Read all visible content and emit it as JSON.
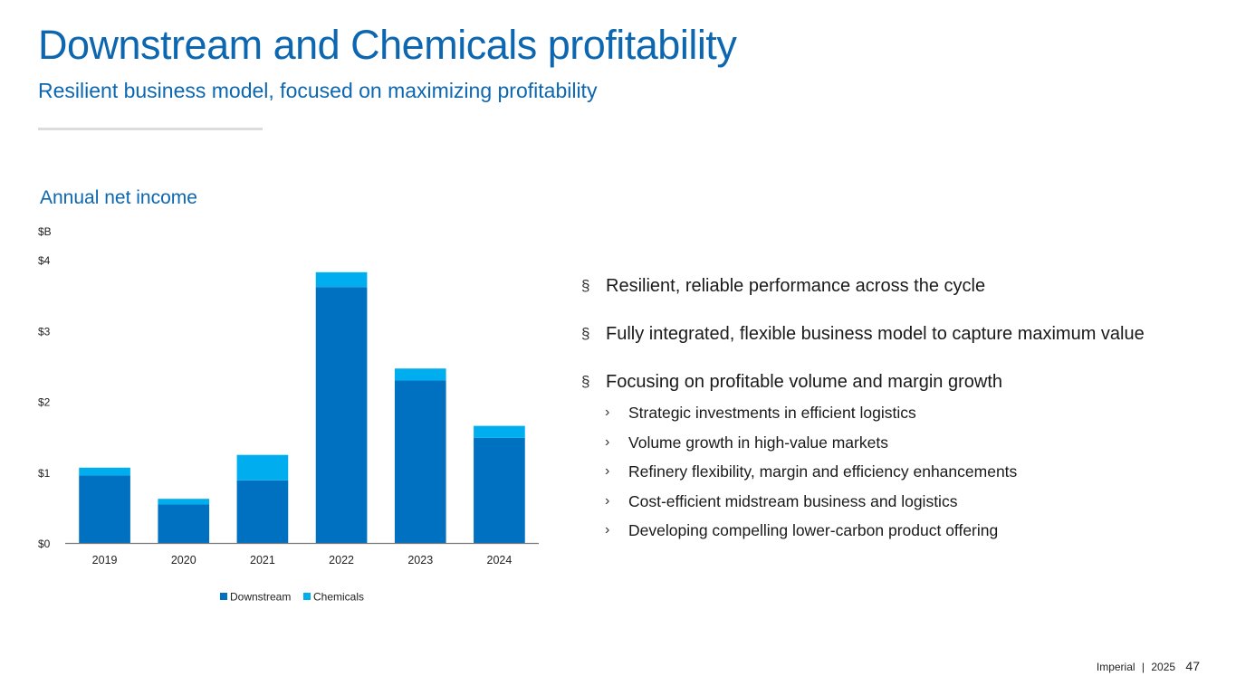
{
  "header": {
    "title": "Downstream and Chemicals profitability",
    "subtitle": "Resilient business model, focused on maximizing profitability"
  },
  "chart_title": "Annual net income",
  "chart_data": {
    "type": "bar",
    "stacked": true,
    "title": "Annual net income",
    "ylabel": "$B",
    "xlabel": "",
    "ylim": [
      0,
      4
    ],
    "yticks": [
      "$0",
      "$1",
      "$2",
      "$3",
      "$4"
    ],
    "categories": [
      "2019",
      "2020",
      "2021",
      "2022",
      "2023",
      "2024"
    ],
    "series": [
      {
        "name": "Downstream",
        "color": "#0070c0",
        "values": [
          0.96,
          0.55,
          0.89,
          3.62,
          2.3,
          1.49
        ]
      },
      {
        "name": "Chemicals",
        "color": "#00aeef",
        "values": [
          0.11,
          0.08,
          0.36,
          0.21,
          0.17,
          0.17
        ]
      }
    ],
    "legend": "bottom",
    "grid": false
  },
  "bullets": [
    {
      "text": "Resilient, reliable performance across the cycle",
      "marker": "§"
    },
    {
      "text": "Fully integrated, flexible business model to capture maximum value",
      "marker": "§"
    },
    {
      "text": "Focusing on profitable volume and margin growth",
      "marker": "§"
    }
  ],
  "sub_bullets": [
    {
      "text": "Strategic investments in efficient logistics",
      "marker": "›"
    },
    {
      "text": "Volume growth in high-value markets",
      "marker": "›"
    },
    {
      "text": "Refinery flexibility, margin and efficiency enhancements",
      "marker": "›"
    },
    {
      "text": "Cost-efficient midstream business and logistics",
      "marker": "›"
    },
    {
      "text": "Developing compelling lower-carbon product offering",
      "marker": "›"
    }
  ],
  "footer": {
    "company": "Imperial",
    "separator": "|",
    "year": "2025",
    "page_number": "47"
  }
}
